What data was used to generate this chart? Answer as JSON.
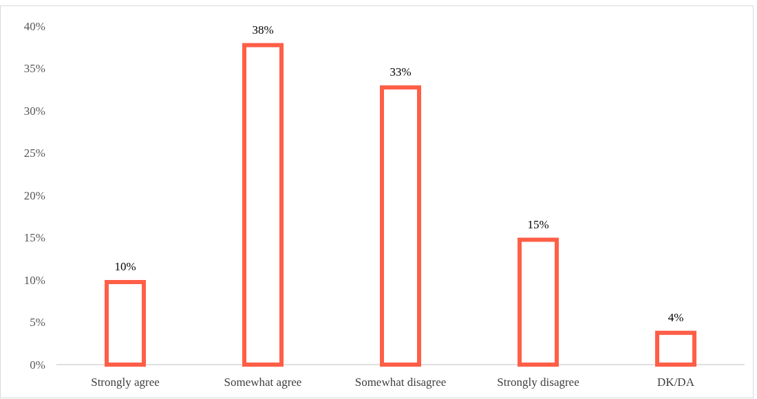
{
  "chart_data": {
    "type": "bar",
    "categories": [
      "Strongly agree",
      "Somewhat agree",
      "Somewhat disagree",
      "Strongly disagree",
      "DK/DA"
    ],
    "values": [
      10,
      38,
      33,
      15,
      4
    ],
    "value_labels": [
      "10%",
      "38%",
      "33%",
      "15%",
      "4%"
    ],
    "color": "#ff5e47",
    "ylim": [
      0,
      40
    ],
    "yticks": [
      {
        "value": 0,
        "label": "0%"
      },
      {
        "value": 5,
        "label": "5%"
      },
      {
        "value": 10,
        "label": "10%"
      },
      {
        "value": 15,
        "label": "15%"
      },
      {
        "value": 20,
        "label": "20%"
      },
      {
        "value": 25,
        "label": "25%"
      },
      {
        "value": 30,
        "label": "30%"
      },
      {
        "value": 35,
        "label": "35%"
      },
      {
        "value": 40,
        "label": "40%"
      }
    ],
    "grid": false
  }
}
